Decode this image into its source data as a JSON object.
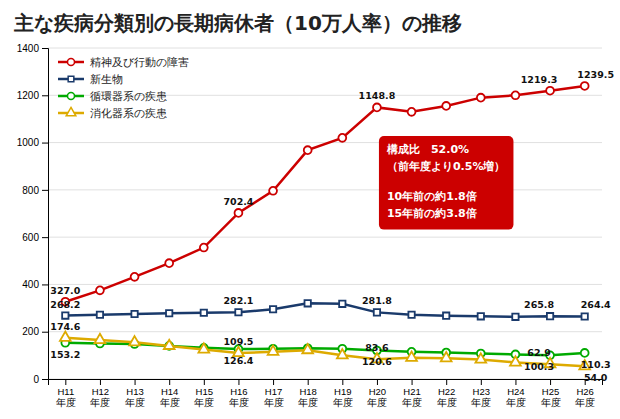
{
  "chart_data": {
    "type": "line",
    "title": "主な疾病分類別の長期病休者（10万人率）の推移",
    "categories": [
      "H11\n年度",
      "H12\n年度",
      "H13\n年度",
      "H14\n年度",
      "H15\n年度",
      "H16\n年度",
      "H17\n年度",
      "H18\n年度",
      "H19\n年度",
      "H20\n年度",
      "H21\n年度",
      "H22\n年度",
      "H23\n年度",
      "H24\n年度",
      "H25\n年度",
      "H26\n年度"
    ],
    "series": [
      {
        "name": "精神及び行動の障害",
        "color": "#cc0000",
        "marker": "circle",
        "values": [
          327.0,
          375.0,
          432.0,
          490.0,
          556.0,
          702.4,
          796.0,
          968.0,
          1020.0,
          1148.8,
          1130.0,
          1155.0,
          1190.0,
          1200.0,
          1219.3,
          1239.5
        ],
        "value_labels": [
          "327.0",
          null,
          null,
          null,
          null,
          "702.4",
          null,
          null,
          null,
          "1148.8",
          null,
          null,
          null,
          null,
          "1219.3",
          "1239.5"
        ]
      },
      {
        "name": "新生物",
        "color": "#1a3a6b",
        "marker": "square",
        "values": [
          268.2,
          272.0,
          275.0,
          278.0,
          280.0,
          282.1,
          295.0,
          320.0,
          318.0,
          281.8,
          272.0,
          268.0,
          265.0,
          263.0,
          265.8,
          264.4
        ],
        "value_labels": [
          "268.2",
          null,
          null,
          null,
          null,
          "282.1",
          null,
          null,
          null,
          "281.8",
          null,
          null,
          null,
          null,
          "265.8",
          "264.4"
        ]
      },
      {
        "name": "循環器系の疾患",
        "color": "#00aa00",
        "marker": "circle",
        "values": [
          153.2,
          150.0,
          148.0,
          140.0,
          132.0,
          126.4,
          128.0,
          130.0,
          128.0,
          120.6,
          115.0,
          112.0,
          108.0,
          104.0,
          100.3,
          110.3
        ],
        "value_labels": [
          "153.2",
          null,
          null,
          null,
          null,
          "126.4",
          null,
          null,
          null,
          "120.6",
          null,
          null,
          null,
          null,
          "100.3",
          "110.3"
        ]
      },
      {
        "name": "消化器系の疾患",
        "color": "#ddaa00",
        "marker": "triangle",
        "values": [
          174.6,
          165.0,
          155.0,
          140.0,
          125.0,
          109.5,
          115.0,
          122.0,
          100.0,
          83.6,
          90.0,
          88.0,
          82.0,
          70.0,
          62.9,
          54.0
        ],
        "value_labels": [
          "174.6",
          null,
          null,
          null,
          null,
          "109.5",
          null,
          null,
          null,
          "83.6",
          null,
          null,
          null,
          null,
          "62.9",
          "54.0"
        ]
      }
    ],
    "ylim": [
      0,
      1400
    ],
    "yticks": [
      0,
      200,
      400,
      600,
      800,
      1000,
      1200,
      1400
    ],
    "grid": true,
    "legend": "upper left",
    "data_labels": true,
    "annotations": [
      "構成比　52.0%",
      "（前年度より0.5%増）",
      "10年前の約1.8倍",
      "15年前の約3.8倍"
    ]
  }
}
